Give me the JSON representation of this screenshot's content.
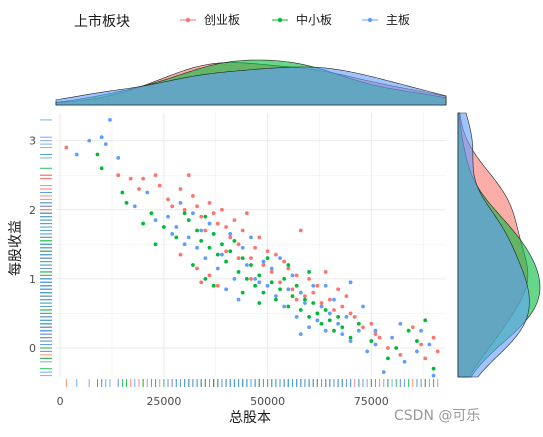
{
  "chart_data": {
    "type": "scatter",
    "title": "",
    "xlabel": "总股本",
    "ylabel": "每股收益",
    "xlim": [
      -1000,
      93000
    ],
    "ylim": [
      -0.42,
      3.4
    ],
    "x_ticks": [
      0,
      25000,
      50000,
      75000
    ],
    "x_tick_labels": [
      "0",
      "25000",
      "50000",
      "75000"
    ],
    "y_ticks": [
      0,
      1,
      2,
      3
    ],
    "y_tick_labels": [
      "0",
      "1",
      "2",
      "3"
    ],
    "grid": true,
    "legend": {
      "title": "上市板块",
      "placement": "top"
    },
    "marginals": {
      "top": "density",
      "right": "density",
      "rug": [
        "bottom",
        "left"
      ]
    },
    "series": [
      {
        "name": "创业板",
        "color": "#F8766D",
        "points": [
          [
            1500,
            2.9
          ],
          [
            14000,
            2.5
          ],
          [
            17000,
            2.45
          ],
          [
            19000,
            2.3
          ],
          [
            20000,
            2.45
          ],
          [
            23000,
            2.5
          ],
          [
            24000,
            2.35
          ],
          [
            26000,
            2.15
          ],
          [
            27000,
            2.05
          ],
          [
            29000,
            2.3
          ],
          [
            30000,
            2.0
          ],
          [
            31000,
            2.5
          ],
          [
            32000,
            2.2
          ],
          [
            33000,
            2.05
          ],
          [
            34000,
            1.9
          ],
          [
            35000,
            1.7
          ],
          [
            36000,
            2.1
          ],
          [
            37000,
            1.95
          ],
          [
            38000,
            1.8
          ],
          [
            39000,
            2.0
          ],
          [
            40000,
            1.75
          ],
          [
            41000,
            1.6
          ],
          [
            42000,
            1.85
          ],
          [
            43000,
            1.5
          ],
          [
            44000,
            1.7
          ],
          [
            45000,
            1.95
          ],
          [
            46000,
            1.3
          ],
          [
            47000,
            1.45
          ],
          [
            48000,
            1.6
          ],
          [
            49000,
            1.2
          ],
          [
            50000,
            1.4
          ],
          [
            51000,
            1.1
          ],
          [
            52000,
            1.35
          ],
          [
            53000,
            0.95
          ],
          [
            54000,
            1.25
          ],
          [
            55000,
            1.15
          ],
          [
            56000,
            0.85
          ],
          [
            57000,
            1.05
          ],
          [
            58000,
            1.7
          ],
          [
            59000,
            0.75
          ],
          [
            60000,
            1.0
          ],
          [
            61000,
            0.8
          ],
          [
            62000,
            0.9
          ],
          [
            63000,
            0.65
          ],
          [
            64000,
            1.1
          ],
          [
            65000,
            0.7
          ],
          [
            66000,
            0.55
          ],
          [
            67000,
            0.85
          ],
          [
            68000,
            0.6
          ],
          [
            69000,
            0.75
          ],
          [
            70000,
            0.5
          ],
          [
            71000,
            0.45
          ],
          [
            73000,
            0.3
          ],
          [
            75000,
            0.35
          ],
          [
            76000,
            0.2
          ],
          [
            77000,
            0.15
          ],
          [
            79000,
            0.0
          ],
          [
            82000,
            -0.1
          ],
          [
            85000,
            0.3
          ],
          [
            87000,
            0.05
          ],
          [
            88000,
            -0.15
          ],
          [
            90000,
            0.15
          ],
          [
            91000,
            -0.05
          ],
          [
            29000,
            1.35
          ],
          [
            33000,
            1.15
          ],
          [
            34000,
            0.95
          ],
          [
            36000,
            1.05
          ],
          [
            38000,
            0.9
          ],
          [
            40000,
            1.4
          ],
          [
            43000,
            1.3
          ],
          [
            46000,
            1.0
          ],
          [
            57000,
            0.7
          ],
          [
            62000,
            0.5
          ]
        ]
      },
      {
        "name": "中小板",
        "color": "#00BA38",
        "points": [
          [
            9000,
            2.8
          ],
          [
            10000,
            2.6
          ],
          [
            15000,
            2.25
          ],
          [
            16000,
            2.1
          ],
          [
            20000,
            1.8
          ],
          [
            22000,
            1.95
          ],
          [
            23000,
            1.5
          ],
          [
            25000,
            1.75
          ],
          [
            28000,
            1.6
          ],
          [
            30000,
            1.95
          ],
          [
            31000,
            1.85
          ],
          [
            33000,
            1.7
          ],
          [
            34000,
            1.55
          ],
          [
            35000,
            1.9
          ],
          [
            36000,
            1.45
          ],
          [
            37000,
            1.65
          ],
          [
            38000,
            1.35
          ],
          [
            39000,
            1.5
          ],
          [
            40000,
            1.25
          ],
          [
            41000,
            1.4
          ],
          [
            42000,
            1.55
          ],
          [
            43000,
            1.1
          ],
          [
            44000,
            1.3
          ],
          [
            45000,
            1.0
          ],
          [
            46000,
            1.2
          ],
          [
            47000,
            0.9
          ],
          [
            48000,
            1.05
          ],
          [
            49000,
            0.8
          ],
          [
            50000,
            1.3
          ],
          [
            51000,
            0.95
          ],
          [
            52000,
            0.7
          ],
          [
            53000,
            0.85
          ],
          [
            54000,
            1.0
          ],
          [
            55000,
            0.6
          ],
          [
            56000,
            0.75
          ],
          [
            57000,
            0.9
          ],
          [
            58000,
            0.55
          ],
          [
            59000,
            0.7
          ],
          [
            60000,
            0.45
          ],
          [
            61000,
            0.65
          ],
          [
            62000,
            0.5
          ],
          [
            63000,
            0.35
          ],
          [
            64000,
            0.55
          ],
          [
            65000,
            0.4
          ],
          [
            66000,
            0.25
          ],
          [
            67000,
            0.45
          ],
          [
            68000,
            0.3
          ],
          [
            70000,
            0.15
          ],
          [
            72000,
            0.35
          ],
          [
            75000,
            0.1
          ],
          [
            79000,
            -0.15
          ],
          [
            81000,
            0.0
          ],
          [
            84000,
            0.25
          ],
          [
            86000,
            0.1
          ],
          [
            88000,
            0.4
          ],
          [
            90000,
            -0.3
          ],
          [
            32000,
            1.2
          ],
          [
            35000,
            1.0
          ],
          [
            37000,
            0.9
          ],
          [
            44000,
            0.8
          ],
          [
            48000,
            0.65
          ],
          [
            55000,
            1.2
          ],
          [
            60000,
            1.1
          ]
        ]
      },
      {
        "name": "主板",
        "color": "#619CFF",
        "points": [
          [
            4000,
            2.8
          ],
          [
            7000,
            3.0
          ],
          [
            10000,
            3.05
          ],
          [
            11000,
            2.95
          ],
          [
            12000,
            3.3
          ],
          [
            14000,
            2.75
          ],
          [
            18000,
            2.05
          ],
          [
            21000,
            2.25
          ],
          [
            23000,
            1.85
          ],
          [
            26000,
            1.9
          ],
          [
            27000,
            1.65
          ],
          [
            28000,
            1.75
          ],
          [
            29000,
            2.1
          ],
          [
            31000,
            1.6
          ],
          [
            32000,
            1.95
          ],
          [
            33000,
            1.45
          ],
          [
            35000,
            1.3
          ],
          [
            36000,
            1.8
          ],
          [
            38000,
            1.15
          ],
          [
            39000,
            1.35
          ],
          [
            41000,
            1.65
          ],
          [
            42000,
            1.0
          ],
          [
            44000,
            1.45
          ],
          [
            45000,
            1.2
          ],
          [
            46000,
            1.6
          ],
          [
            47000,
            1.0
          ],
          [
            48000,
            0.95
          ],
          [
            49000,
            1.25
          ],
          [
            50000,
            0.9
          ],
          [
            51000,
            1.15
          ],
          [
            52000,
            0.75
          ],
          [
            53000,
            1.3
          ],
          [
            54000,
            0.6
          ],
          [
            55000,
            0.85
          ],
          [
            56000,
            1.05
          ],
          [
            57000,
            0.45
          ],
          [
            58000,
            0.8
          ],
          [
            59000,
            0.65
          ],
          [
            60000,
            0.3
          ],
          [
            61000,
            0.9
          ],
          [
            62000,
            0.4
          ],
          [
            63000,
            0.6
          ],
          [
            64000,
            0.25
          ],
          [
            65000,
            0.5
          ],
          [
            66000,
            0.7
          ],
          [
            67000,
            0.35
          ],
          [
            68000,
            0.2
          ],
          [
            69000,
            0.45
          ],
          [
            70000,
            0.1
          ],
          [
            72000,
            0.25
          ],
          [
            73000,
            0.6
          ],
          [
            74000,
            -0.05
          ],
          [
            76000,
            0.05
          ],
          [
            78000,
            -0.35
          ],
          [
            80000,
            0.15
          ],
          [
            82000,
            0.35
          ],
          [
            83000,
            -0.2
          ],
          [
            86000,
            -0.05
          ],
          [
            87000,
            0.25
          ],
          [
            89000,
            0.05
          ],
          [
            90000,
            -0.4
          ],
          [
            30000,
            1.5
          ],
          [
            34000,
            1.7
          ],
          [
            40000,
            0.85
          ],
          [
            43000,
            0.7
          ],
          [
            58000,
            0.2
          ],
          [
            64000,
            0.9
          ],
          [
            70000,
            0.95
          ],
          [
            76000,
            0.25
          ]
        ]
      }
    ]
  },
  "watermark": "CSDN @可乐"
}
